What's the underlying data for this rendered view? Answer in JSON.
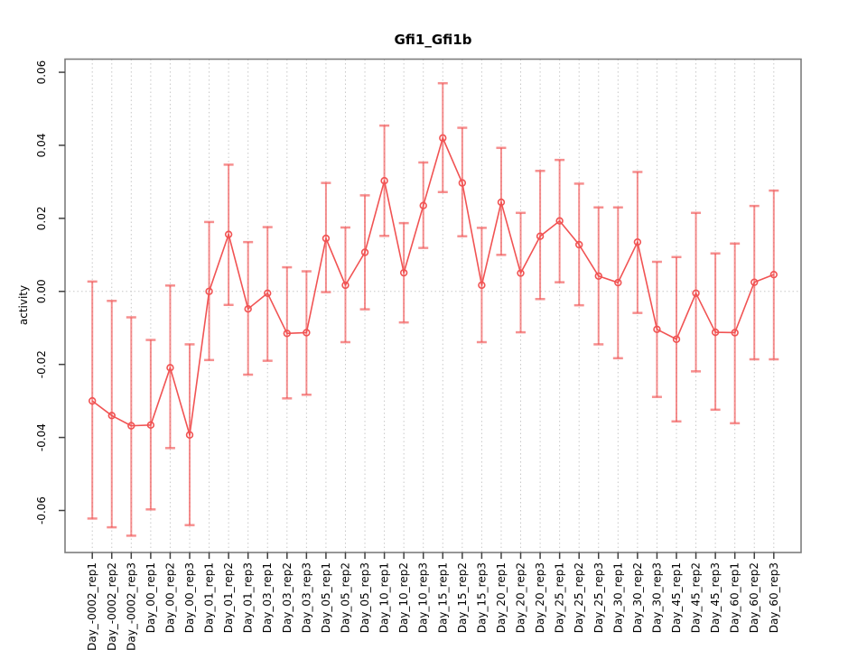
{
  "window": {
    "title": "Gfi1_Gfi1b plot"
  },
  "chart_data": {
    "type": "line",
    "title": "Gfi1_Gfi1b",
    "xlabel": "",
    "ylabel": "activity",
    "ylim": [
      -0.0715,
      0.0636
    ],
    "yticks": [
      -0.06,
      -0.04,
      -0.02,
      0.0,
      0.02,
      0.04,
      0.06
    ],
    "grid": "vertical-dotted-per-category",
    "zero_reference_line": true,
    "legend_position": "none",
    "marker": "open-circle",
    "categories": [
      "Day_-0002_rep1",
      "Day_-0002_rep2",
      "Day_-0002_rep3",
      "Day_00_rep1",
      "Day_00_rep2",
      "Day_00_rep3",
      "Day_01_rep1",
      "Day_01_rep2",
      "Day_01_rep3",
      "Day_03_rep1",
      "Day_03_rep2",
      "Day_03_rep3",
      "Day_05_rep1",
      "Day_05_rep2",
      "Day_05_rep3",
      "Day_10_rep1",
      "Day_10_rep2",
      "Day_10_rep3",
      "Day_15_rep1",
      "Day_15_rep2",
      "Day_15_rep3",
      "Day_20_rep1",
      "Day_20_rep2",
      "Day_20_rep3",
      "Day_25_rep1",
      "Day_25_rep2",
      "Day_25_rep3",
      "Day_30_rep1",
      "Day_30_rep2",
      "Day_30_rep3",
      "Day_45_rep1",
      "Day_45_rep2",
      "Day_45_rep3",
      "Day_60_rep1",
      "Day_60_rep2",
      "Day_60_rep3"
    ],
    "series": [
      {
        "name": "activity",
        "values": [
          -0.03,
          -0.034,
          -0.0368,
          -0.0366,
          -0.0209,
          -0.0393,
          0.0,
          0.0156,
          -0.0048,
          -0.0005,
          -0.0115,
          -0.0113,
          0.0145,
          0.0017,
          0.0107,
          0.0303,
          0.0051,
          0.0235,
          0.042,
          0.0297,
          0.0017,
          0.0244,
          0.005,
          0.0151,
          0.0193,
          0.0128,
          0.0042,
          0.0024,
          0.0135,
          -0.0104,
          -0.0131,
          -0.0005,
          -0.0112,
          -0.0113,
          0.0025,
          0.0046
        ],
        "error_high": [
          0.0027,
          -0.0026,
          -0.0071,
          -0.0133,
          0.0016,
          -0.0145,
          0.019,
          0.0347,
          0.0135,
          0.0176,
          0.0066,
          0.0055,
          0.0297,
          0.0175,
          0.0263,
          0.0454,
          0.0187,
          0.0353,
          0.057,
          0.0448,
          0.0174,
          0.0393,
          0.0215,
          0.033,
          0.036,
          0.0295,
          0.023,
          0.023,
          0.0327,
          0.0081,
          0.0094,
          0.0215,
          0.0104,
          0.0131,
          0.0234,
          0.0276
        ],
        "error_low": [
          -0.0622,
          -0.0646,
          -0.0669,
          -0.0597,
          -0.0429,
          -0.064,
          -0.0188,
          -0.0037,
          -0.0228,
          -0.019,
          -0.0293,
          -0.0283,
          -0.0002,
          -0.0139,
          -0.0049,
          0.0152,
          -0.0085,
          0.0119,
          0.0272,
          0.0151,
          -0.0139,
          0.01,
          -0.0112,
          -0.0021,
          0.0025,
          -0.0038,
          -0.0145,
          -0.0183,
          -0.0059,
          -0.0289,
          -0.0356,
          -0.0219,
          -0.0324,
          -0.0361,
          -0.0186,
          -0.0186
        ]
      }
    ],
    "colors": {
      "series": "#f15353",
      "error_bar": "rgba(241,83,83,0.65)",
      "grid": "#c8c8c8",
      "box": "#7d7d7d",
      "tick": "#404040",
      "text": "#000000",
      "background": "#ffffff"
    }
  }
}
